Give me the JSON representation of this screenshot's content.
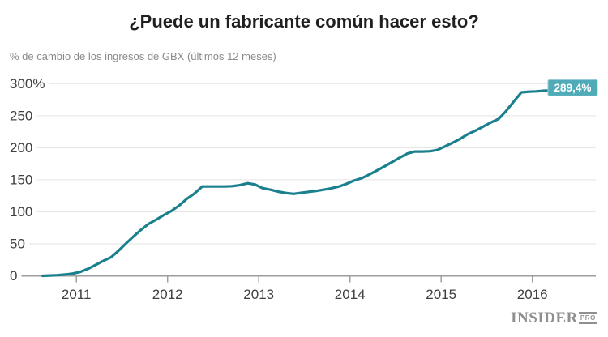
{
  "header": {
    "title": "¿Puede un fabricante común hacer esto?",
    "subtitle": "% de cambio de los ingresos de GBX (últimos 12 meses)"
  },
  "chart_data": {
    "type": "line",
    "title": "¿Puede un fabricante común hacer esto?",
    "subtitle": "% de cambio de los ingresos de GBX (últimos 12 meses)",
    "xlabel": "",
    "ylabel": "% de cambio",
    "xlim": [
      2010.55,
      2016.35
    ],
    "ylim": [
      0,
      300
    ],
    "grid": true,
    "legend": false,
    "end_label": "289,4%",
    "end_value": 289.4,
    "x_ticks": [
      {
        "v": 2011,
        "label": "2011"
      },
      {
        "v": 2012,
        "label": "2012"
      },
      {
        "v": 2013,
        "label": "2013"
      },
      {
        "v": 2014,
        "label": "2014"
      },
      {
        "v": 2015,
        "label": "2015"
      },
      {
        "v": 2016,
        "label": "2016"
      }
    ],
    "y_ticks": [
      {
        "v": 0,
        "label": "0"
      },
      {
        "v": 50,
        "label": "50"
      },
      {
        "v": 100,
        "label": "100"
      },
      {
        "v": 150,
        "label": "150"
      },
      {
        "v": 200,
        "label": "200"
      },
      {
        "v": 250,
        "label": "250"
      },
      {
        "v": 300,
        "label": "300%"
      }
    ],
    "series": [
      {
        "name": "GBX ingresos % cambio (últimos 12 meses)",
        "color": "#1b808e",
        "x": [
          2010.63,
          2010.71,
          2010.79,
          2010.88,
          2010.96,
          2011.04,
          2011.13,
          2011.21,
          2011.29,
          2011.38,
          2011.46,
          2011.54,
          2011.63,
          2011.71,
          2011.79,
          2011.88,
          2011.96,
          2012.04,
          2012.13,
          2012.21,
          2012.29,
          2012.38,
          2012.46,
          2012.54,
          2012.63,
          2012.71,
          2012.79,
          2012.88,
          2012.96,
          2013.04,
          2013.13,
          2013.21,
          2013.29,
          2013.38,
          2013.46,
          2013.54,
          2013.63,
          2013.71,
          2013.79,
          2013.88,
          2013.96,
          2014.04,
          2014.13,
          2014.21,
          2014.29,
          2014.38,
          2014.46,
          2014.54,
          2014.63,
          2014.71,
          2014.79,
          2014.88,
          2014.96,
          2015.04,
          2015.13,
          2015.21,
          2015.29,
          2015.38,
          2015.46,
          2015.54,
          2015.63,
          2015.71,
          2015.79,
          2015.88,
          2015.96,
          2016.04,
          2016.13,
          2016.18
        ],
        "values": [
          0,
          0.5,
          1,
          2,
          3.5,
          6,
          11,
          17,
          23,
          29,
          39,
          50,
          62,
          72,
          81,
          88,
          95,
          101,
          110,
          120,
          128,
          139.5,
          139.5,
          139.5,
          139.5,
          140,
          141.5,
          144.5,
          142.5,
          137,
          134.5,
          131.5,
          129.5,
          128,
          129.5,
          131,
          132.5,
          134.5,
          136.5,
          139.5,
          143.5,
          148.5,
          152.5,
          158,
          164,
          171,
          177.5,
          184,
          191,
          194,
          194,
          194.5,
          196.5,
          202,
          208,
          214,
          221,
          227,
          233,
          239,
          245,
          257,
          271,
          286.5,
          287.5,
          288,
          289,
          289.4
        ]
      }
    ]
  },
  "colors": {
    "accent_line": "#1b808e",
    "badge_bg": "#4fabb8",
    "badge_border": "#9fd0d8",
    "badge_text": "#ffffff",
    "grid": "#e3e3e3",
    "axis": "#9e9e9e",
    "tick_label": "#404040",
    "title": "#1f1f1f",
    "subtitle": "#8a8a8a",
    "brand": "#8f8f8f"
  },
  "footer": {
    "brand": "INSIDER",
    "brand_suffix": "PRO"
  }
}
